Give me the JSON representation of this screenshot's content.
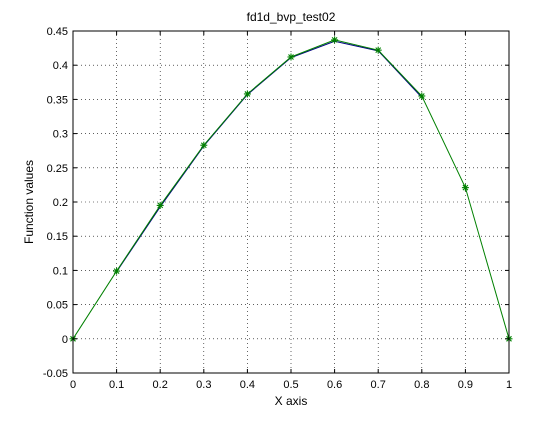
{
  "chart_data": {
    "type": "line",
    "title": "fd1d_bvp_test02",
    "xlabel": "X axis",
    "ylabel": "Function values",
    "xlim": [
      0,
      1
    ],
    "ylim": [
      -0.05,
      0.45
    ],
    "xticks": [
      "0",
      "0.1",
      "0.2",
      "0.3",
      "0.4",
      "0.5",
      "0.6",
      "0.7",
      "0.8",
      "0.9",
      "1"
    ],
    "yticks": [
      "-0.05",
      "0",
      "0.05",
      "0.1",
      "0.15",
      "0.2",
      "0.25",
      "0.3",
      "0.35",
      "0.4",
      "0.45"
    ],
    "grid": true,
    "legend": "none",
    "series": [
      {
        "color": "#000080",
        "marker": "none",
        "x": [
          0.1,
          0.2,
          0.3,
          0.4,
          0.5,
          0.6,
          0.7,
          0.8
        ],
        "y": [
          0.098,
          0.193,
          0.282,
          0.357,
          0.411,
          0.435,
          0.421,
          0.353
        ]
      },
      {
        "color": "#008000",
        "marker": "asterisk",
        "x": [
          0.0,
          0.1,
          0.2,
          0.3,
          0.4,
          0.5,
          0.6,
          0.7,
          0.8,
          0.9,
          1.0
        ],
        "y": [
          0.0,
          0.099,
          0.195,
          0.283,
          0.358,
          0.412,
          0.437,
          0.422,
          0.355,
          0.221,
          0.0
        ]
      }
    ]
  }
}
